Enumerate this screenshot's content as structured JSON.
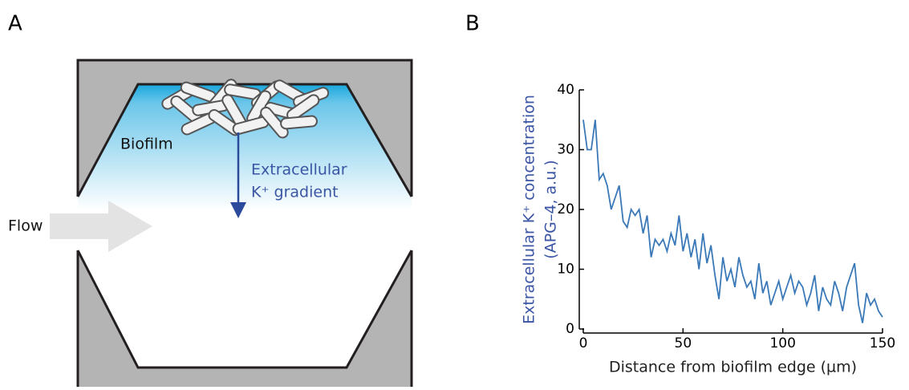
{
  "panel_labels": [
    "A",
    "B"
  ],
  "diagram": {
    "biofilm": "Biofilm",
    "gradient_line1": "Extracellular",
    "gradient_line2": "K⁺ gradient",
    "flow": "Flow"
  },
  "chart_data": {
    "type": "line",
    "xlabel": "Distance from biofilm edge (µm)",
    "ylabel": [
      "Extracellular K⁺ concentration",
      "(APG–4, a.u.)"
    ],
    "x": [
      0,
      2,
      4,
      6,
      8,
      10,
      12,
      14,
      16,
      18,
      20,
      22,
      24,
      26,
      28,
      30,
      32,
      34,
      36,
      38,
      40,
      42,
      44,
      46,
      48,
      50,
      52,
      54,
      56,
      58,
      60,
      62,
      64,
      66,
      68,
      70,
      72,
      74,
      76,
      78,
      80,
      82,
      84,
      86,
      88,
      90,
      92,
      94,
      96,
      98,
      100,
      102,
      104,
      106,
      108,
      110,
      112,
      114,
      116,
      118,
      120,
      122,
      124,
      126,
      128,
      130,
      132,
      134,
      136,
      138,
      140,
      142,
      144,
      146,
      148,
      150
    ],
    "series": [
      {
        "color": "#3a78b8",
        "values": [
          35,
          30,
          30,
          35,
          25,
          26,
          24,
          20,
          22,
          24,
          18,
          17,
          20,
          19,
          20,
          16,
          19,
          12,
          15,
          14,
          15,
          13,
          16,
          14,
          19,
          13,
          16,
          12,
          15,
          10,
          16,
          11,
          14,
          9,
          5,
          12,
          8,
          10,
          7,
          12,
          9,
          7,
          8,
          5,
          11,
          6,
          8,
          4,
          6,
          8,
          5,
          7,
          9,
          6,
          8,
          7,
          4,
          6,
          9,
          3,
          7,
          5,
          4,
          8,
          6,
          3,
          7,
          9,
          11,
          4,
          1,
          6,
          4,
          5,
          3,
          2
        ]
      }
    ],
    "xlim": [
      0,
      150
    ],
    "ylim": [
      0,
      40
    ],
    "xticks": [
      0,
      50,
      100,
      150
    ],
    "yticks": [
      0,
      10,
      20,
      30,
      40
    ]
  }
}
